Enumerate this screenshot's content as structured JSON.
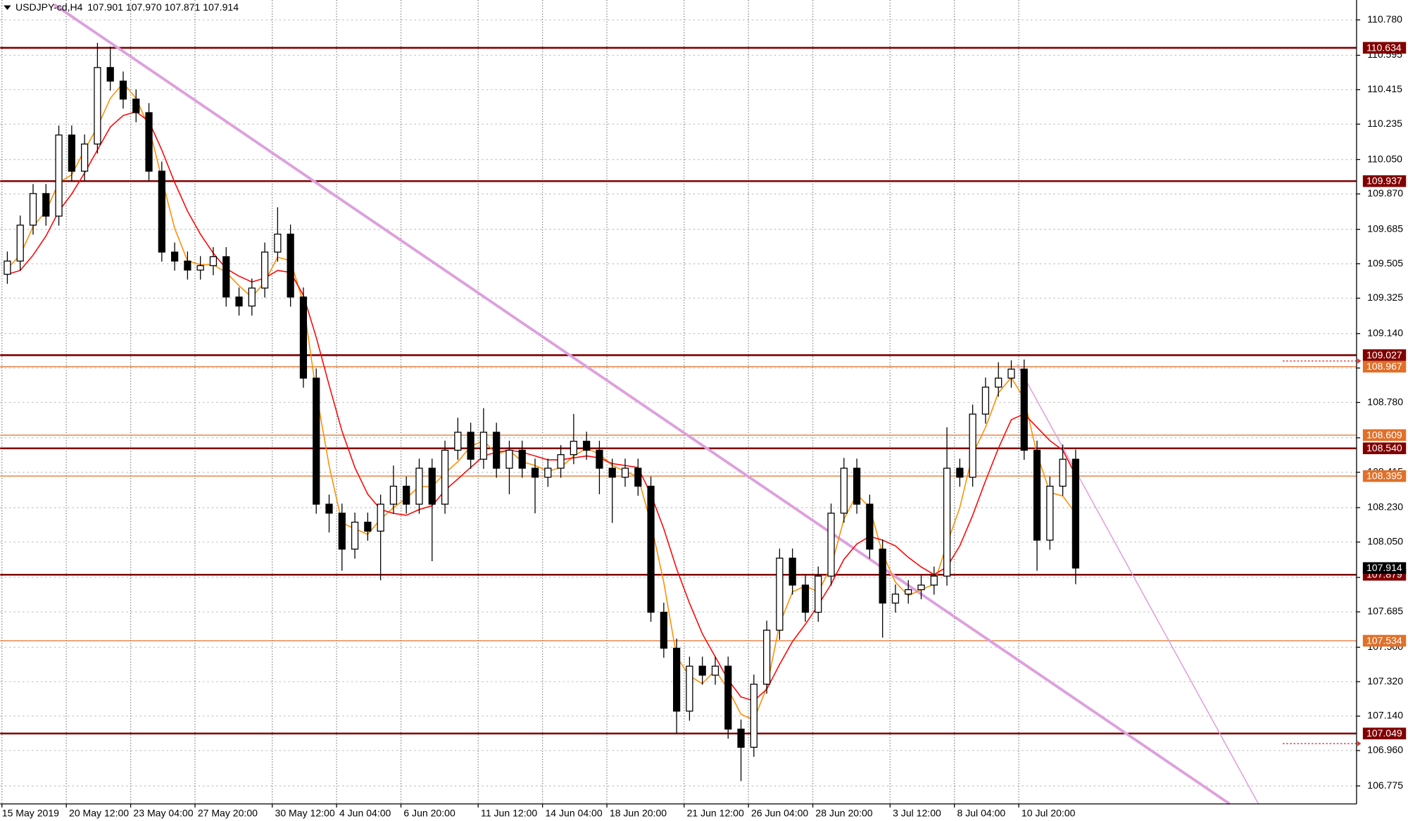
{
  "chart_data": {
    "type": "candlestick",
    "title": "USDJPY-cd,H4",
    "subtitle": "107.901 107.970 107.871 107.914",
    "ylim": [
      106.681,
      110.884
    ],
    "yticks": [
      {
        "value": 110.78,
        "label": "110.780"
      },
      110.595,
      110.415,
      110.235,
      {
        "value": 110.05,
        "label": "110.050"
      },
      {
        "value": 109.87,
        "label": "109.870"
      },
      109.685,
      109.505,
      109.325,
      {
        "value": 109.14,
        "label": "109.140"
      },
      {
        "value": 108.96,
        "label": "108.960"
      },
      {
        "value": 108.78,
        "label": "108.780"
      },
      108.595,
      108.415,
      {
        "value": 108.23,
        "label": "108.230"
      },
      {
        "value": 108.05,
        "label": "108.050"
      },
      107.865,
      107.685,
      {
        "value": 107.5,
        "label": "107.500"
      },
      {
        "value": 107.32,
        "label": "107.320"
      },
      {
        "value": 107.14,
        "label": "107.140"
      },
      {
        "value": 106.96,
        "label": "106.960"
      },
      106.775
    ],
    "grid": true,
    "categories": [
      "15 May 2019",
      null,
      null,
      null,
      null,
      "20 May 12:00",
      null,
      null,
      null,
      null,
      "23 May 04:00",
      null,
      null,
      null,
      null,
      "27 May 20:00",
      null,
      null,
      null,
      null,
      null,
      "30 May 12:00",
      null,
      null,
      null,
      null,
      "4 Jun 04:00",
      null,
      null,
      null,
      null,
      "6 Jun 20:00",
      null,
      null,
      null,
      null,
      null,
      "11 Jun 12:00",
      null,
      null,
      null,
      null,
      "14 Jun 04:00",
      null,
      null,
      null,
      null,
      "18 Jun 20:00",
      null,
      null,
      null,
      null,
      null,
      "21 Jun 12:00",
      null,
      null,
      null,
      null,
      "26 Jun 04:00",
      null,
      null,
      null,
      null,
      "28 Jun 20:00",
      null,
      null,
      null,
      null,
      null,
      "3 Jul 12:00",
      null,
      null,
      null,
      null,
      "8 Jul 04:00",
      null,
      null,
      null,
      null,
      "10 Jul 20:00",
      null,
      null,
      null,
      null
    ],
    "open": [
      109.45,
      109.519,
      109.707,
      109.872,
      109.754,
      110.178,
      109.989,
      110.131,
      110.531,
      110.46,
      110.366,
      110.295,
      109.989,
      109.566,
      109.519,
      109.472,
      109.495,
      109.542,
      109.331,
      109.284,
      109.378,
      109.566,
      109.66,
      109.331,
      108.907,
      108.248,
      108.201,
      108.013,
      108.154,
      108.107,
      108.248,
      108.342,
      108.248,
      108.436,
      108.248,
      108.53,
      108.624,
      108.483,
      108.624,
      108.436,
      108.53,
      108.436,
      108.389,
      108.436,
      108.507,
      108.577,
      108.53,
      108.436,
      108.389,
      108.436,
      108.342,
      107.683,
      107.495,
      107.166,
      107.401,
      107.354,
      107.401,
      107.072,
      106.977,
      107.307,
      107.589,
      107.966,
      107.825,
      107.683,
      107.872,
      108.201,
      108.436,
      108.248,
      108.013,
      107.731,
      107.778,
      107.801,
      107.825,
      107.872,
      108.436,
      108.389,
      108.719,
      108.86,
      108.907,
      108.954,
      108.53,
      108.06,
      108.342,
      108.483
    ],
    "high": [
      109.569,
      109.757,
      109.922,
      109.922,
      110.228,
      110.228,
      110.181,
      110.66,
      110.64,
      110.51,
      110.416,
      110.345,
      110.039,
      109.616,
      109.569,
      109.545,
      109.592,
      109.592,
      109.381,
      109.428,
      109.616,
      109.8,
      109.71,
      109.381,
      108.957,
      108.298,
      108.251,
      108.204,
      108.204,
      108.298,
      108.45,
      108.392,
      108.486,
      108.486,
      108.58,
      108.7,
      108.674,
      108.75,
      108.674,
      108.58,
      108.58,
      108.486,
      108.486,
      108.557,
      108.72,
      108.627,
      108.58,
      108.486,
      108.486,
      108.486,
      108.392,
      107.733,
      107.545,
      107.451,
      107.451,
      107.451,
      107.451,
      107.122,
      107.357,
      107.639,
      108.016,
      108.016,
      107.875,
      107.922,
      108.251,
      108.49,
      108.486,
      108.298,
      108.063,
      107.828,
      107.851,
      107.875,
      107.922,
      108.65,
      108.486,
      108.769,
      108.91,
      108.99,
      109.0,
      109.004,
      108.58,
      108.392,
      108.56,
      108.533
    ],
    "low": [
      109.4,
      109.469,
      109.657,
      109.704,
      109.704,
      109.939,
      109.939,
      110.081,
      110.41,
      110.316,
      110.245,
      109.939,
      109.516,
      109.469,
      109.422,
      109.422,
      109.445,
      109.281,
      109.234,
      109.234,
      109.328,
      109.516,
      109.281,
      108.857,
      108.198,
      108.1,
      107.9,
      107.963,
      108.057,
      107.85,
      108.198,
      108.198,
      108.198,
      107.95,
      108.198,
      108.48,
      108.433,
      108.433,
      108.386,
      108.3,
      108.386,
      108.2,
      108.339,
      108.386,
      108.457,
      108.48,
      108.3,
      108.15,
      108.339,
      108.292,
      107.633,
      107.445,
      107.05,
      107.116,
      107.304,
      107.304,
      107.022,
      106.8,
      106.927,
      107.257,
      107.539,
      107.775,
      107.633,
      107.633,
      107.822,
      108.151,
      108.198,
      107.963,
      107.55,
      107.681,
      107.728,
      107.751,
      107.775,
      107.822,
      108.339,
      108.339,
      108.669,
      108.81,
      108.857,
      108.48,
      107.9,
      108.01,
      108.292,
      107.83
    ],
    "close": [
      109.519,
      109.707,
      109.872,
      109.754,
      110.178,
      109.989,
      110.131,
      110.531,
      110.46,
      110.366,
      110.295,
      109.989,
      109.566,
      109.519,
      109.472,
      109.495,
      109.542,
      109.331,
      109.284,
      109.378,
      109.566,
      109.66,
      109.331,
      108.907,
      108.248,
      108.201,
      108.013,
      108.154,
      108.107,
      108.248,
      108.342,
      108.248,
      108.436,
      108.248,
      108.53,
      108.624,
      108.483,
      108.624,
      108.436,
      108.53,
      108.436,
      108.389,
      108.436,
      108.507,
      108.577,
      108.53,
      108.436,
      108.389,
      108.436,
      108.342,
      107.683,
      107.495,
      107.166,
      107.401,
      107.354,
      107.401,
      107.072,
      106.977,
      107.307,
      107.589,
      107.966,
      107.825,
      107.683,
      107.872,
      108.201,
      108.436,
      108.248,
      108.013,
      107.731,
      107.778,
      107.801,
      107.825,
      107.872,
      108.436,
      108.389,
      108.719,
      108.86,
      108.907,
      108.954,
      108.53,
      108.06,
      108.342,
      108.483,
      107.914
    ],
    "bull_color": "#ffffff",
    "bear_color": "#000000",
    "moving_averages": [
      {
        "color": "#ff8c00",
        "values": [
          109.48,
          109.55,
          109.7,
          109.78,
          109.93,
          109.97,
          110.1,
          110.22,
          110.37,
          110.45,
          110.37,
          110.22,
          109.95,
          109.69,
          109.52,
          109.5,
          109.5,
          109.46,
          109.39,
          109.33,
          109.41,
          109.54,
          109.52,
          109.3,
          108.83,
          108.45,
          108.15,
          108.12,
          108.09,
          108.17,
          108.23,
          108.28,
          108.34,
          108.34,
          108.41,
          108.47,
          108.55,
          108.58,
          108.51,
          108.53,
          108.47,
          108.45,
          108.42,
          108.44,
          108.5,
          108.54,
          108.51,
          108.45,
          108.42,
          108.39,
          108.15,
          107.84,
          107.45,
          107.35,
          107.31,
          107.38,
          107.28,
          107.15,
          107.12,
          107.29,
          107.62,
          107.79,
          107.82,
          107.79,
          107.92,
          108.17,
          108.3,
          108.23,
          107.99,
          107.84,
          107.77,
          107.8,
          107.83,
          108.04,
          108.23,
          108.51,
          108.65,
          108.83,
          108.91,
          108.8,
          108.51,
          108.31,
          108.29,
          108.2
        ]
      },
      {
        "color": "#ff0000",
        "values": [
          109.45,
          109.47,
          109.55,
          109.65,
          109.78,
          109.87,
          109.98,
          110.1,
          110.22,
          110.28,
          110.3,
          110.25,
          110.1,
          109.93,
          109.78,
          109.66,
          109.56,
          109.48,
          109.44,
          109.41,
          109.43,
          109.47,
          109.46,
          109.34,
          109.12,
          108.87,
          108.63,
          108.44,
          108.3,
          108.22,
          108.2,
          108.19,
          108.22,
          108.24,
          108.32,
          108.38,
          108.44,
          108.5,
          108.52,
          108.53,
          108.52,
          108.5,
          108.48,
          108.48,
          108.49,
          108.5,
          108.49,
          108.46,
          108.45,
          108.44,
          108.3,
          108.12,
          107.91,
          107.73,
          107.57,
          107.45,
          107.33,
          107.24,
          107.22,
          107.28,
          107.41,
          107.53,
          107.62,
          107.72,
          107.83,
          107.96,
          108.04,
          108.08,
          108.06,
          108.03,
          107.97,
          107.92,
          107.88,
          107.92,
          108.03,
          108.19,
          108.37,
          108.54,
          108.69,
          108.72,
          108.65,
          108.58,
          108.53,
          108.4
        ]
      }
    ],
    "levels": [
      110.634,
      109.937,
      109.027,
      108.967,
      108.609,
      {
        "value": 108.54,
        "label": "108.540"
      },
      108.395,
      107.879,
      107.534,
      107.049
    ],
    "level_colors": [
      "#800000",
      "#800000",
      "#800000",
      "#e0702a",
      "#e0702a",
      "#800000",
      "#e0702a",
      "#800000",
      "#e0702a",
      "#800000"
    ],
    "last_price": 107.914,
    "last_price_color": "#000000"
  }
}
